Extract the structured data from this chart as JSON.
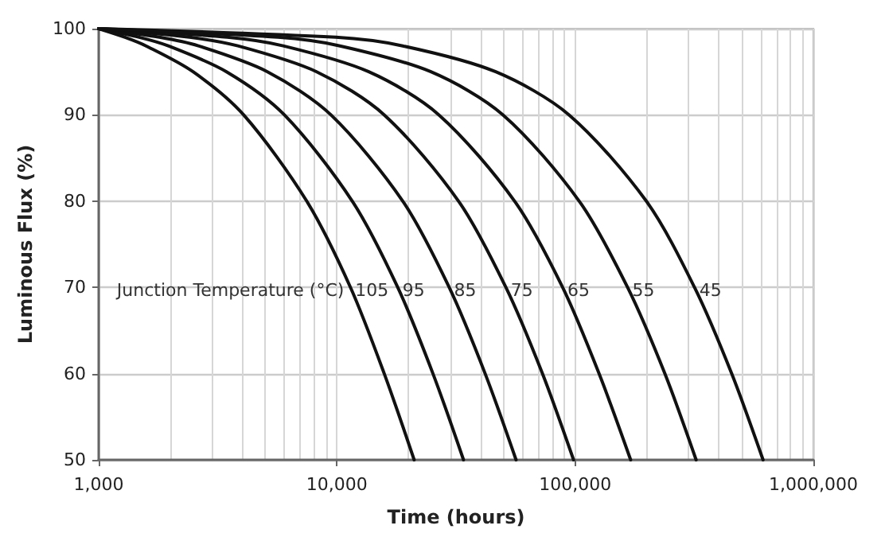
{
  "chart_data": {
    "type": "line",
    "xlabel": "Time (hours)",
    "ylabel": "Luminous Flux (%)",
    "legend_title": "Junction Temperature (°C)",
    "log": "x",
    "xlim": [
      1000,
      1000000
    ],
    "xticks": [
      {
        "value": 1000,
        "label": "1,000"
      },
      {
        "value": 10000,
        "label": "10,000"
      },
      {
        "value": 100000,
        "label": "100,000"
      },
      {
        "value": 1000000,
        "label": "1,000,000"
      }
    ],
    "ylim": [
      50,
      100
    ],
    "yticks": [
      50,
      60,
      70,
      80,
      90,
      100
    ],
    "grid": true,
    "marker": "none",
    "line_style": "solid",
    "series": [
      {
        "name": "105",
        "color": "#111111",
        "x": [
          1000,
          1290,
          1580,
          2490,
          4060,
          7470,
          11400,
          15800,
          21100
        ],
        "values": [
          100,
          99,
          98,
          95,
          90,
          80,
          70,
          60,
          50
        ]
      },
      {
        "name": "95",
        "color": "#111111",
        "x": [
          1000,
          1480,
          1960,
          3440,
          6020,
          11600,
          18000,
          25300,
          34000
        ],
        "values": [
          100,
          99,
          98,
          95,
          90,
          80,
          70,
          60,
          50
        ]
      },
      {
        "name": "85",
        "color": "#111111",
        "x": [
          1000,
          1800,
          2620,
          5110,
          9440,
          18900,
          29600,
          41900,
          56500
        ],
        "values": [
          100,
          99,
          98,
          95,
          90,
          80,
          70,
          60,
          50
        ]
      },
      {
        "name": "75",
        "color": "#111111",
        "x": [
          1000,
          2410,
          3840,
          8220,
          15800,
          32400,
          51200,
          72900,
          98500
        ],
        "values": [
          100,
          99,
          98,
          95,
          90,
          80,
          70,
          60,
          50
        ]
      },
      {
        "name": "65",
        "color": "#111111",
        "x": [
          1000,
          3470,
          5950,
          13600,
          26800,
          55700,
          88600,
          126000,
          171000
        ],
        "values": [
          100,
          99,
          98,
          95,
          90,
          80,
          70,
          60,
          50
        ]
      },
      {
        "name": "55",
        "color": "#111111",
        "x": [
          1000,
          5660,
          10300,
          24800,
          49800,
          104000,
          166000,
          238000,
          322000
        ],
        "values": [
          100,
          99,
          98,
          95,
          90,
          80,
          70,
          60,
          50
        ]
      },
      {
        "name": "45",
        "color": "#111111",
        "x": [
          1000,
          9900,
          18900,
          46400,
          94300,
          199000,
          317000,
          454000,
          615000
        ],
        "values": [
          100,
          99,
          98,
          95,
          90,
          80,
          70,
          60,
          50
        ]
      }
    ]
  }
}
